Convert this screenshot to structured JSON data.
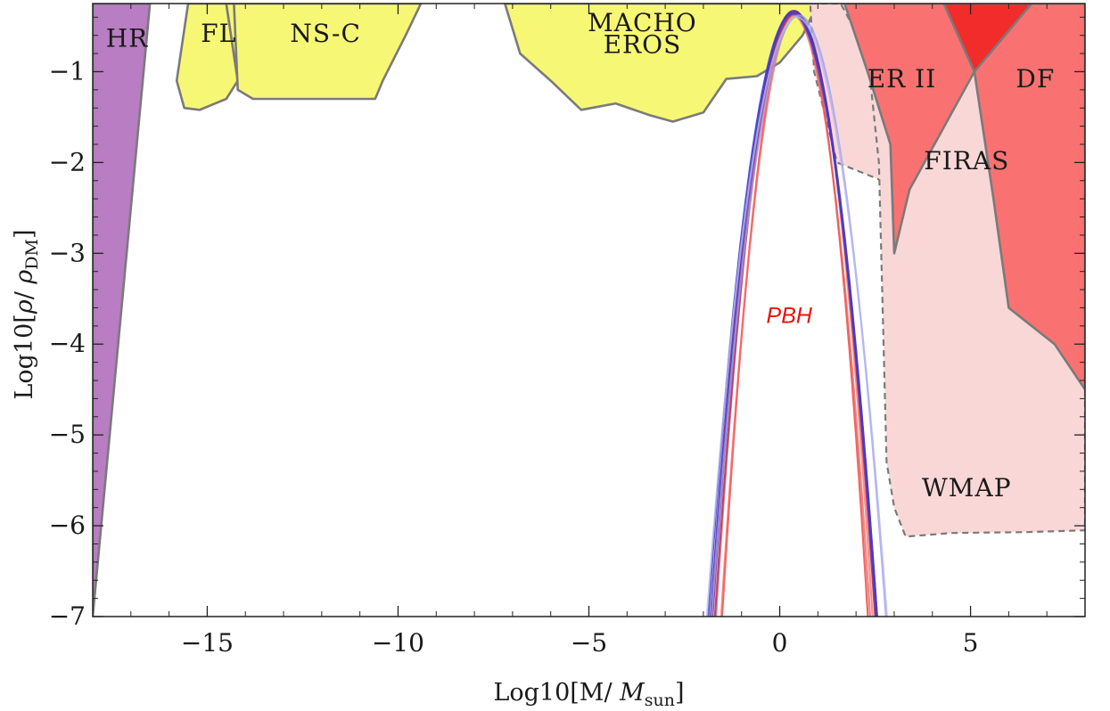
{
  "chart_data": {
    "type": "area",
    "title": "",
    "xlabel": "Log10[M/ M_sun]",
    "xlabel_parts": [
      "Log10[M/ ",
      "M",
      "sun",
      "]"
    ],
    "ylabel": "Log10[ρ/ ρ_DM]",
    "ylabel_parts": [
      "Log10[",
      "ρ",
      "/ ",
      "ρ",
      "DM",
      "]"
    ],
    "xlim": [
      -18,
      8
    ],
    "ylim": [
      -7,
      -0.25
    ],
    "xticks": [
      -15,
      -10,
      -5,
      0,
      5
    ],
    "xtick_labels": [
      "−15",
      "−10",
      "−5",
      "0",
      "5"
    ],
    "yticks": [
      -7,
      -6,
      -5,
      -4,
      -3,
      -2,
      -1
    ],
    "ytick_labels": [
      "−7",
      "−6",
      "−5",
      "−4",
      "−3",
      "−2",
      "−1"
    ],
    "grid": false,
    "regions": [
      {
        "label": "HR",
        "color": "#b87dc2",
        "dashed": false,
        "points": [
          [
            -18,
            -7
          ],
          [
            -18,
            -0.25
          ],
          [
            -16.5,
            -0.25
          ]
        ]
      },
      {
        "label": "FL",
        "color": "#f7f776",
        "dashed": false,
        "points": [
          [
            -15.5,
            -0.25
          ],
          [
            -14.5,
            -0.25
          ],
          [
            -14.2,
            -1.1
          ],
          [
            -14.5,
            -1.3
          ],
          [
            -15.2,
            -1.42
          ],
          [
            -15.6,
            -1.4
          ],
          [
            -15.8,
            -1.1
          ]
        ]
      },
      {
        "label": "",
        "color": "#f7f776",
        "dashed": false,
        "points": [
          [
            -14.5,
            -0.25
          ],
          [
            -12.4,
            -0.25
          ],
          [
            -12.8,
            -0.8
          ],
          [
            -13.6,
            -1.05
          ],
          [
            -14.2,
            -1.1
          ]
        ]
      },
      {
        "label": "NS-C",
        "color": "#f7f776",
        "dashed": false,
        "points": [
          [
            -14.3,
            -0.25
          ],
          [
            -9.4,
            -0.25
          ],
          [
            -9.8,
            -0.6
          ],
          [
            -10.4,
            -1.1
          ],
          [
            -10.6,
            -1.3
          ],
          [
            -13.8,
            -1.3
          ],
          [
            -14.2,
            -1.2
          ]
        ]
      },
      {
        "label": "MACHO EROS",
        "color": "#f7f776",
        "dashed": false,
        "points": [
          [
            -7.2,
            -0.25
          ],
          [
            1.0,
            -0.25
          ],
          [
            0.6,
            -0.6
          ],
          [
            0,
            -0.9
          ],
          [
            -0.6,
            -1.05
          ],
          [
            -1.4,
            -1.08
          ],
          [
            -2.0,
            -1.45
          ],
          [
            -2.8,
            -1.55
          ],
          [
            -3.4,
            -1.48
          ],
          [
            -4.3,
            -1.35
          ],
          [
            -5.2,
            -1.42
          ],
          [
            -6.0,
            -1.1
          ],
          [
            -6.8,
            -0.8
          ]
        ]
      },
      {
        "label": "FIRAS",
        "color": "#fad7d7",
        "dashed": true,
        "points": [
          [
            0.8,
            -0.25
          ],
          [
            8,
            -0.25
          ],
          [
            8,
            -2.3
          ],
          [
            6.2,
            -2.27
          ],
          [
            4.5,
            -2.25
          ],
          [
            2.8,
            -2.22
          ],
          [
            1.5,
            -2.0
          ],
          [
            0.9,
            -1.0
          ]
        ]
      },
      {
        "label": "WMAP",
        "color": "#fad7d7",
        "dashed": true,
        "points": [
          [
            1.6,
            -0.25
          ],
          [
            8,
            -0.25
          ],
          [
            8,
            -6.05
          ],
          [
            6.5,
            -6.07
          ],
          [
            4.5,
            -6.08
          ],
          [
            3.3,
            -6.12
          ],
          [
            3.0,
            -5.8
          ],
          [
            2.8,
            -5.3
          ],
          [
            2.6,
            -2.0
          ],
          [
            2.3,
            -0.8
          ]
        ]
      },
      {
        "label": "ER II",
        "color": "#f97271",
        "dashed": false,
        "points": [
          [
            1.7,
            -0.25
          ],
          [
            6.6,
            -0.25
          ],
          [
            5.1,
            -1.0
          ],
          [
            3.4,
            -2.3
          ],
          [
            3.0,
            -3.0
          ],
          [
            2.9,
            -1.8
          ],
          [
            2.3,
            -1.0
          ]
        ]
      },
      {
        "label": "DF",
        "color": "#f97271",
        "dashed": false,
        "points": [
          [
            4.3,
            -0.25
          ],
          [
            8,
            -0.25
          ],
          [
            8,
            -4.5
          ],
          [
            7.2,
            -4.0
          ],
          [
            6.0,
            -3.6
          ],
          [
            5.6,
            -2.4
          ],
          [
            5.1,
            -1.0
          ]
        ]
      },
      {
        "label": "",
        "color": "#f22b2b",
        "dashed": false,
        "points": [
          [
            4.3,
            -0.25
          ],
          [
            6.6,
            -0.25
          ],
          [
            5.1,
            -1.0
          ]
        ]
      }
    ],
    "region_labels": [
      {
        "text": "HR",
        "x": -17.1,
        "y": -0.65
      },
      {
        "text": "FL",
        "x": -14.7,
        "y": -0.6
      },
      {
        "text": "NS-C",
        "x": -11.9,
        "y": -0.6
      },
      {
        "text": "MACHO",
        "x": -3.6,
        "y": -0.48
      },
      {
        "text": "EROS",
        "x": -3.6,
        "y": -0.72
      },
      {
        "text": "ER II",
        "x": 3.2,
        "y": -1.1
      },
      {
        "text": "DF",
        "x": 6.7,
        "y": -1.1
      },
      {
        "text": "FIRAS",
        "x": 4.9,
        "y": -2.0
      },
      {
        "text": "WMAP",
        "x": 4.9,
        "y": -5.6
      }
    ],
    "pbh_label": {
      "text": "PBH",
      "x": 0.25,
      "y": -3.7
    },
    "series": [
      {
        "color": "#f24a48",
        "mu": 0.4,
        "sigma": 0.5,
        "peak": -0.35,
        "opacity": 0.85
      },
      {
        "color": "#f56a66",
        "mu": 0.45,
        "sigma": 0.52,
        "peak": -0.36,
        "opacity": 0.75
      },
      {
        "color": "#e8605f",
        "mu": 0.35,
        "sigma": 0.53,
        "peak": -0.38,
        "opacity": 0.75
      },
      {
        "color": "#a0386e",
        "mu": 0.4,
        "sigma": 0.55,
        "peak": -0.36,
        "opacity": 0.85
      },
      {
        "color": "#7a2f8e",
        "mu": 0.38,
        "sigma": 0.56,
        "peak": -0.34,
        "opacity": 0.85
      },
      {
        "color": "#5a2fa8",
        "mu": 0.37,
        "sigma": 0.57,
        "peak": -0.33,
        "opacity": 0.9
      },
      {
        "color": "#3d3fd0",
        "mu": 0.34,
        "sigma": 0.58,
        "peak": -0.36,
        "opacity": 0.9
      },
      {
        "color": "#9a9ee8",
        "mu": 0.5,
        "sigma": 0.6,
        "peak": -0.38,
        "opacity": 0.8
      },
      {
        "color": "#b7b9f0",
        "mu": 0.45,
        "sigma": 0.62,
        "peak": -0.4,
        "opacity": 0.8
      }
    ]
  }
}
